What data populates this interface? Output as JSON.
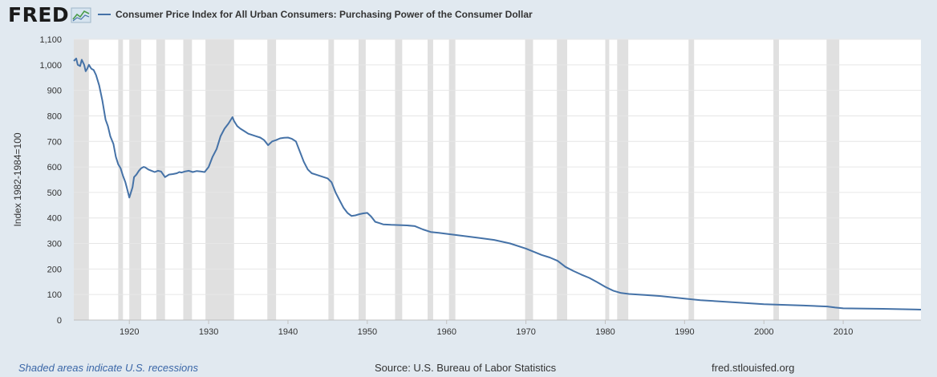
{
  "header": {
    "logo_text": "FRED",
    "logo_icon": "chart-line-icon",
    "legend_label": "Consumer Price Index for All Urban Consumers: Purchasing Power of the Consumer Dollar"
  },
  "footer": {
    "recession_note": "Shaded areas indicate U.S. recessions",
    "source": "Source: U.S. Bureau of Labor Statistics",
    "url": "fred.stlouisfed.org"
  },
  "colors": {
    "series": "#4572a7",
    "recession": "#e0e0e0",
    "background": "#e1e9f0",
    "plot": "#ffffff"
  },
  "chart_data": {
    "type": "line",
    "title": "",
    "xlabel": "",
    "ylabel": "Index 1982-1984=100",
    "xlim": [
      1913.0,
      2019.8
    ],
    "ylim": [
      0,
      1100
    ],
    "x_ticks": [
      1920,
      1930,
      1940,
      1950,
      1960,
      1970,
      1980,
      1990,
      2000,
      2010
    ],
    "x_tick_labels": [
      "1920",
      "1930",
      "1940",
      "1950",
      "1960",
      "1970",
      "1980",
      "1990",
      "2000",
      "2010"
    ],
    "y_ticks": [
      0,
      100,
      200,
      300,
      400,
      500,
      600,
      700,
      800,
      900,
      1000,
      1100
    ],
    "y_tick_labels": [
      "0",
      "100",
      "200",
      "300",
      "400",
      "500",
      "600",
      "700",
      "800",
      "900",
      "1,000",
      "1,100"
    ],
    "grid": "horizontal",
    "recessions": [
      [
        1913.0,
        1914.9
      ],
      [
        1918.6,
        1919.2
      ],
      [
        1920.0,
        1921.5
      ],
      [
        1923.4,
        1924.5
      ],
      [
        1926.8,
        1927.9
      ],
      [
        1929.6,
        1933.2
      ],
      [
        1937.4,
        1938.5
      ],
      [
        1945.1,
        1945.8
      ],
      [
        1948.9,
        1949.8
      ],
      [
        1953.5,
        1954.4
      ],
      [
        1957.6,
        1958.3
      ],
      [
        1960.3,
        1961.1
      ],
      [
        1969.9,
        1970.9
      ],
      [
        1973.9,
        1975.2
      ],
      [
        1980.0,
        1980.5
      ],
      [
        1981.5,
        1982.9
      ],
      [
        1990.5,
        1991.2
      ],
      [
        2001.2,
        2001.9
      ],
      [
        2007.9,
        2009.5
      ]
    ],
    "series": [
      {
        "name": "Consumer Price Index for All Urban Consumers: Purchasing Power of the Consumer Dollar",
        "x": [
          1913.0,
          1913.3,
          1913.5,
          1913.8,
          1914.0,
          1914.3,
          1914.5,
          1914.7,
          1914.9,
          1915.2,
          1915.5,
          1915.8,
          1916.2,
          1916.6,
          1917.0,
          1917.3,
          1917.6,
          1918.0,
          1918.3,
          1918.6,
          1918.9,
          1919.2,
          1919.5,
          1919.8,
          1920.0,
          1920.2,
          1920.4,
          1920.6,
          1920.9,
          1921.2,
          1921.5,
          1921.8,
          1922.0,
          1922.4,
          1922.8,
          1923.2,
          1923.6,
          1924.0,
          1924.5,
          1925.0,
          1925.5,
          1926.0,
          1926.3,
          1926.6,
          1927.0,
          1927.5,
          1928.0,
          1928.5,
          1929.0,
          1929.5,
          1930.0,
          1930.5,
          1931.0,
          1931.5,
          1932.0,
          1932.5,
          1933.0,
          1933.2,
          1933.4,
          1933.6,
          1934.0,
          1934.5,
          1935.0,
          1935.5,
          1936.0,
          1936.5,
          1937.0,
          1937.5,
          1938.0,
          1938.5,
          1939.0,
          1939.5,
          1940.0,
          1940.5,
          1941.0,
          1941.5,
          1942.0,
          1942.5,
          1943.0,
          1943.5,
          1944.0,
          1944.5,
          1945.0,
          1945.5,
          1946.0,
          1946.5,
          1947.0,
          1947.5,
          1948.0,
          1948.5,
          1949.0,
          1949.5,
          1950.0,
          1950.5,
          1951.0,
          1951.5,
          1952.0,
          1953.0,
          1954.0,
          1955.0,
          1956.0,
          1957.0,
          1958.0,
          1959.0,
          1960.0,
          1962.0,
          1964.0,
          1966.0,
          1968.0,
          1970.0,
          1972.0,
          1973.0,
          1974.0,
          1975.0,
          1976.0,
          1977.0,
          1978.0,
          1979.0,
          1980.0,
          1981.0,
          1982.0,
          1983.0,
          1985.0,
          1987.0,
          1990.0,
          1992.0,
          1995.0,
          2000.0,
          2005.0,
          2008.0,
          2009.0,
          2010.0,
          2015.0,
          2019.8
        ],
        "values": [
          1015,
          1025,
          1000,
          995,
          1020,
          1000,
          975,
          985,
          1000,
          985,
          980,
          960,
          920,
          860,
          785,
          760,
          720,
          690,
          640,
          610,
          595,
          565,
          540,
          505,
          480,
          500,
          520,
          560,
          570,
          585,
          595,
          600,
          598,
          590,
          585,
          580,
          585,
          582,
          560,
          570,
          572,
          575,
          580,
          578,
          582,
          585,
          580,
          584,
          582,
          580,
          600,
          640,
          670,
          720,
          750,
          770,
          795,
          780,
          770,
          760,
          750,
          740,
          730,
          725,
          720,
          715,
          705,
          685,
          700,
          705,
          712,
          714,
          715,
          710,
          700,
          660,
          620,
          590,
          575,
          570,
          565,
          560,
          555,
          540,
          500,
          470,
          440,
          420,
          408,
          410,
          415,
          418,
          420,
          405,
          385,
          380,
          375,
          373,
          372,
          371,
          368,
          355,
          345,
          342,
          338,
          330,
          322,
          314,
          300,
          280,
          255,
          245,
          232,
          208,
          192,
          178,
          165,
          148,
          130,
          115,
          106,
          102,
          98,
          94,
          84,
          78,
          72,
          62,
          57,
          53,
          49,
          46,
          44,
          41
        ]
      }
    ]
  }
}
